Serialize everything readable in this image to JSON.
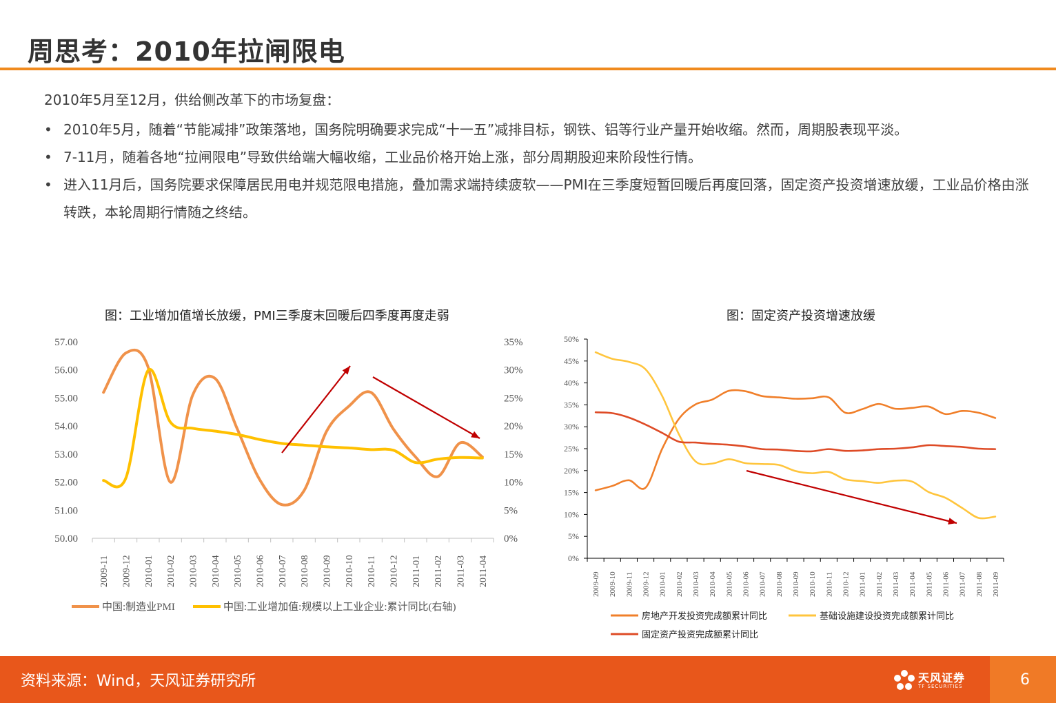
{
  "title": "周思考：2010年拉闸限电",
  "intro": "2010年5月至12月，供给侧改革下的市场复盘：",
  "bullets": [
    "2010年5月，随着“节能减排”政策落地，国务院明确要求完成“十一五”减排目标，钢铁、铝等行业产量开始收缩。然而，周期股表现平淡。",
    "7-11月，随着各地“拉闸限电”导致供给端大幅收缩，工业品价格开始上涨，部分周期股迎来阶段性行情。",
    "进入11月后，国务院要求保障居民用电并规范限电措施，叠加需求端持续疲软——PMI在三季度短暂回暖后再度回落，固定资产投资增速放缓，工业品价格由涨转跌，本轮周期行情随之终结。"
  ],
  "bullet_symbol": "•",
  "footer": {
    "source": "资料来源：Wind，天风证券研究所",
    "logo_text": "天风证券",
    "logo_sub": "TF SECURITIES",
    "page": "6"
  },
  "colors": {
    "accent": "#f08a1e",
    "footer": "#e8571b",
    "pmi": "#f0924a",
    "iva": "#ffc000",
    "real_estate": "#f07f2a",
    "infra": "#ffc53d",
    "fai": "#de4b26",
    "arrow": "#c00000"
  },
  "chart_data": [
    {
      "type": "line",
      "title": "图：工业增加值增长放缓，PMI三季度末回暖后四季度再度走弱",
      "categories": [
        "2009-11",
        "2009-12",
        "2010-01",
        "2010-02",
        "2010-03",
        "2010-04",
        "2010-05",
        "2010-06",
        "2010-07",
        "2010-08",
        "2010-09",
        "2010-10",
        "2010-11",
        "2010-12",
        "2011-01",
        "2011-02",
        "2011-03",
        "2011-04"
      ],
      "y_left": {
        "min": 50,
        "max": 57,
        "ticks": [
          "50.00",
          "51.00",
          "52.00",
          "53.00",
          "54.00",
          "55.00",
          "56.00",
          "57.00"
        ]
      },
      "y_right": {
        "min": 0,
        "max": 35,
        "ticks": [
          "0%",
          "5%",
          "10%",
          "15%",
          "20%",
          "25%",
          "30%",
          "35%"
        ]
      },
      "series": [
        {
          "name": "中国:制造业PMI",
          "axis": "left",
          "values": [
            55.2,
            56.6,
            56.1,
            52.0,
            55.1,
            55.7,
            53.9,
            52.1,
            51.2,
            51.7,
            53.8,
            54.7,
            55.2,
            53.9,
            52.9,
            52.2,
            53.4,
            52.9
          ]
        },
        {
          "name": "中国:工业增加值:规模以上工业企业:累计同比(右轴)",
          "axis": "right",
          "values": [
            10.3,
            10.7,
            29.9,
            20.7,
            19.6,
            19.1,
            18.5,
            17.6,
            16.9,
            16.6,
            16.3,
            16.1,
            15.8,
            15.7,
            13.5,
            14.1,
            14.4,
            14.3
          ]
        }
      ],
      "annotations": [
        "rising arrow Jul-Oct 2010",
        "falling arrow Nov 2010-Apr 2011"
      ]
    },
    {
      "type": "line",
      "title": "图：固定资产投资增速放缓",
      "categories": [
        "2009-09",
        "2009-10",
        "2009-11",
        "2009-12",
        "2010-01",
        "2010-02",
        "2010-03",
        "2010-04",
        "2010-05",
        "2010-06",
        "2010-07",
        "2010-08",
        "2010-09",
        "2010-10",
        "2010-11",
        "2010-12",
        "2011-01",
        "2011-02",
        "2011-03",
        "2011-04",
        "2011-05",
        "2011-06",
        "2011-07",
        "2011-08",
        "2011-09"
      ],
      "y": {
        "min": 0,
        "max": 50,
        "ticks": [
          "0%",
          "5%",
          "10%",
          "15%",
          "20%",
          "25%",
          "30%",
          "35%",
          "40%",
          "45%",
          "50%"
        ]
      },
      "series": [
        {
          "name": "房地产开发投资完成额累计同比",
          "values": [
            15.5,
            16.5,
            17.8,
            16.1,
            25.0,
            31.8,
            35.1,
            36.2,
            38.2,
            38.1,
            37.0,
            36.7,
            36.4,
            36.5,
            36.7,
            33.2,
            34.0,
            35.2,
            34.1,
            34.3,
            34.6,
            32.9,
            33.6,
            33.2,
            32.0
          ]
        },
        {
          "name": "基础设施建设投资完成额累计同比",
          "values": [
            47.0,
            45.5,
            44.8,
            43.1,
            37.0,
            28.3,
            22.1,
            21.6,
            22.6,
            21.7,
            21.5,
            21.3,
            19.9,
            19.4,
            19.7,
            18.0,
            17.6,
            17.2,
            17.7,
            17.5,
            15.1,
            13.8,
            11.5,
            9.2,
            9.5
          ]
        },
        {
          "name": "固定资产投资完成额累计同比",
          "values": [
            33.3,
            33.1,
            32.1,
            30.5,
            28.6,
            26.6,
            26.4,
            26.1,
            25.9,
            25.5,
            24.9,
            24.8,
            24.5,
            24.4,
            24.9,
            24.5,
            24.6,
            24.9,
            25.0,
            25.3,
            25.8,
            25.6,
            25.4,
            25.0,
            24.9
          ]
        }
      ],
      "annotations": [
        "falling arrow Jun 2010-Jul 2011"
      ]
    }
  ]
}
